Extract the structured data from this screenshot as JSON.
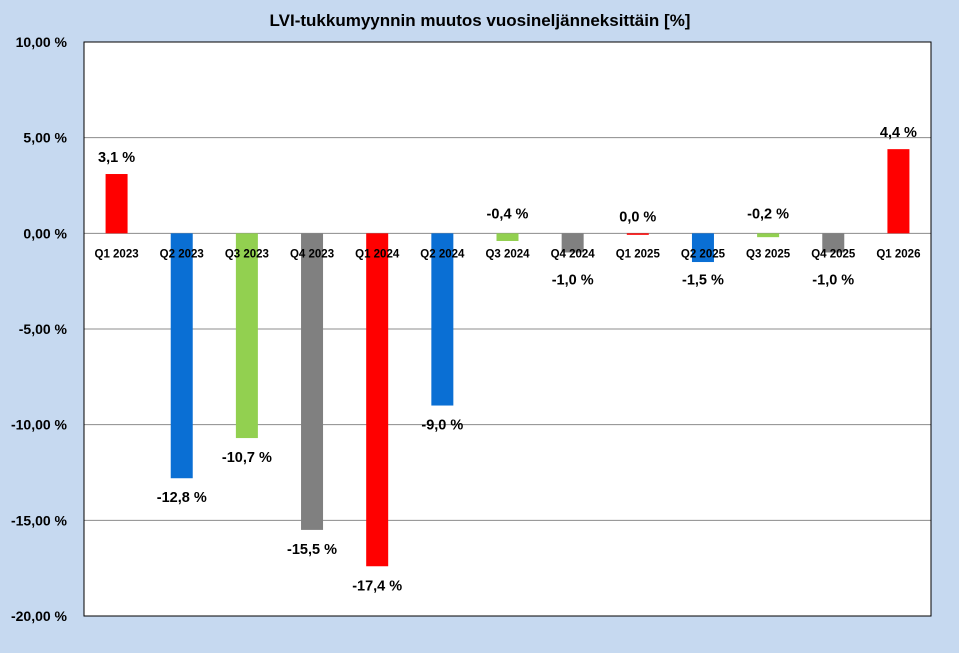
{
  "chart_data": {
    "type": "bar",
    "title": "LVI-tukkumyynnin muutos vuosineljänneksittäin [%]",
    "categories": [
      "Q1 2023",
      "Q2 2023",
      "Q3 2023",
      "Q4 2023",
      "Q1 2024",
      "Q2 2024",
      "Q3 2024",
      "Q4 2024",
      "Q1 2025",
      "Q2 2025",
      "Q3 2025",
      "Q4 2025",
      "Q1 2026"
    ],
    "values": [
      3.1,
      -12.8,
      -10.7,
      -15.5,
      -17.4,
      -9.0,
      -0.4,
      -1.0,
      0.0,
      -1.5,
      -0.2,
      -1.0,
      4.4
    ],
    "value_labels": [
      "3,1 %",
      "-12,8 %",
      "-10,7 %",
      "-15,5 %",
      "-17,4 %",
      "-9,0 %",
      "-0,4 %",
      "-1,0 %",
      "0,0 %",
      "-1,5 %",
      "-0,2 %",
      "-1,0 %",
      "4,4 %"
    ],
    "bar_colors": [
      "#ff0000",
      "#0a6fd4",
      "#92d050",
      "#808080",
      "#ff0000",
      "#0a6fd4",
      "#92d050",
      "#808080",
      "#ff0000",
      "#0a6fd4",
      "#92d050",
      "#808080",
      "#ff0000"
    ],
    "ylim": [
      -20,
      10
    ],
    "y_ticks": [
      10,
      5,
      0,
      -5,
      -10,
      -15,
      -20
    ],
    "y_tick_labels": [
      "10,00 %",
      "5,00 %",
      "0,00 %",
      "-5,00 %",
      "-10,00 %",
      "-15,00 %",
      "-20,00 %"
    ],
    "grid": true,
    "legend": "none",
    "xlabel": "",
    "ylabel": ""
  }
}
